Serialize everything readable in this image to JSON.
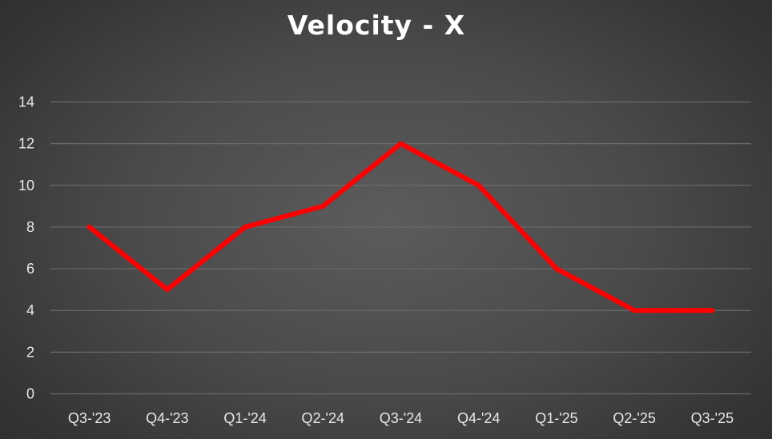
{
  "chart_data": {
    "type": "line",
    "title": "Velocity - X",
    "categories": [
      "Q3-'23",
      "Q4-'23",
      "Q1-'24",
      "Q2-'24",
      "Q3-'24",
      "Q4-'24",
      "Q1-'25",
      "Q2-'25",
      "Q3-'25"
    ],
    "series": [
      {
        "values": [
          8,
          5,
          8,
          9,
          12,
          10,
          6,
          4,
          4
        ],
        "color": "#ff0000"
      }
    ],
    "ylim": [
      0,
      14
    ],
    "yticks": [
      0,
      2,
      4,
      6,
      8,
      10,
      12,
      14
    ],
    "grid": true,
    "legend": "none",
    "colors": {
      "line": "#ff0000",
      "grid": "#6a6a6a",
      "text": "#e8e8e8",
      "title": "#ffffff"
    }
  }
}
